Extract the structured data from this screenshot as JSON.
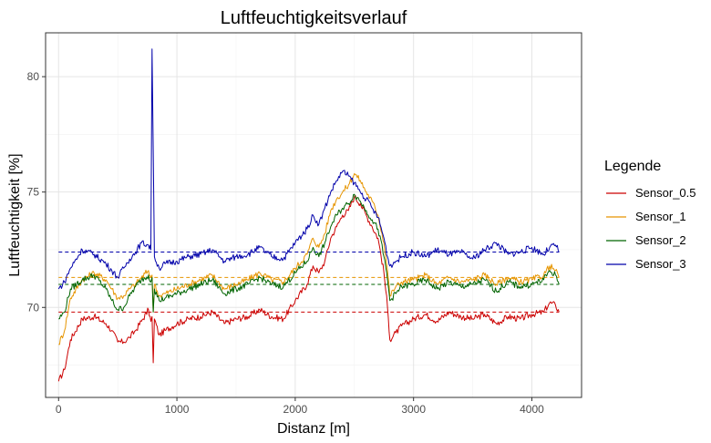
{
  "chart_data": {
    "type": "line",
    "title": "Luftfeuchtigkeitsverlauf",
    "xlabel": "Distanz [m]",
    "ylabel": "Luftfeuchtigkeit [%]",
    "xlim": [
      -110,
      4420
    ],
    "ylim": [
      66.1,
      81.9
    ],
    "x_ticks": [
      0,
      1000,
      2000,
      3000,
      4000
    ],
    "y_ticks": [
      70,
      75,
      80
    ],
    "grid": true,
    "legend": {
      "title": "Legende",
      "position": "right"
    },
    "colors": {
      "Sensor_0.5": "#cc0000",
      "Sensor_1": "#e69500",
      "Sensor_2": "#006400",
      "Sensor_3": "#0000aa"
    },
    "series": [
      {
        "name": "Sensor_0.5",
        "mean": 69.8,
        "x": [
          0,
          50,
          100,
          200,
          300,
          400,
          450,
          500,
          550,
          600,
          650,
          700,
          760,
          780,
          790,
          800,
          810,
          850,
          900,
          1000,
          1100,
          1200,
          1300,
          1400,
          1500,
          1600,
          1700,
          1800,
          1900,
          2000,
          2100,
          2150,
          2200,
          2250,
          2300,
          2350,
          2400,
          2450,
          2500,
          2550,
          2600,
          2650,
          2700,
          2750,
          2780,
          2800,
          2850,
          2900,
          3000,
          3100,
          3200,
          3300,
          3400,
          3500,
          3600,
          3700,
          3800,
          3900,
          4000,
          4100,
          4150,
          4200,
          4230
        ],
        "values": [
          66.8,
          67.3,
          68.6,
          69.5,
          69.6,
          69.3,
          69.0,
          68.5,
          68.5,
          68.7,
          69.0,
          69.4,
          69.9,
          69.4,
          69.6,
          67.6,
          69.5,
          68.8,
          69.0,
          69.3,
          69.5,
          69.6,
          69.8,
          69.3,
          69.5,
          69.6,
          69.9,
          69.6,
          69.5,
          70.3,
          71.0,
          71.8,
          71.5,
          72.0,
          73.0,
          73.5,
          74.0,
          74.2,
          74.8,
          74.5,
          74.0,
          73.5,
          73.0,
          71.5,
          70.0,
          68.6,
          68.9,
          69.2,
          69.5,
          69.7,
          69.4,
          69.8,
          69.6,
          69.5,
          69.7,
          69.3,
          69.6,
          69.5,
          69.7,
          69.8,
          70.2,
          70.1,
          69.8
        ]
      },
      {
        "name": "Sensor_1",
        "mean": 71.3,
        "x": [
          0,
          50,
          100,
          200,
          300,
          400,
          450,
          500,
          550,
          600,
          650,
          700,
          760,
          780,
          790,
          800,
          810,
          850,
          900,
          1000,
          1100,
          1200,
          1300,
          1400,
          1500,
          1600,
          1700,
          1800,
          1900,
          2000,
          2100,
          2150,
          2200,
          2250,
          2300,
          2350,
          2400,
          2450,
          2500,
          2550,
          2600,
          2650,
          2700,
          2750,
          2780,
          2800,
          2850,
          2900,
          3000,
          3100,
          3200,
          3300,
          3400,
          3500,
          3600,
          3700,
          3800,
          3900,
          4000,
          4100,
          4150,
          4200,
          4230
        ],
        "values": [
          68.4,
          69.0,
          70.4,
          71.2,
          71.5,
          71.2,
          70.8,
          70.4,
          70.5,
          70.8,
          71.0,
          71.3,
          71.6,
          71.3,
          71.4,
          69.8,
          71.0,
          70.5,
          70.6,
          70.8,
          71.0,
          71.2,
          71.4,
          70.8,
          71.0,
          71.2,
          71.5,
          71.2,
          71.1,
          71.7,
          72.3,
          73.0,
          72.6,
          73.2,
          74.2,
          74.7,
          75.0,
          75.3,
          75.8,
          75.5,
          75.0,
          74.6,
          74.0,
          72.8,
          71.6,
          70.5,
          70.9,
          71.1,
          71.2,
          71.4,
          71.0,
          71.3,
          71.1,
          71.2,
          71.4,
          71.0,
          71.3,
          71.1,
          71.2,
          71.4,
          71.8,
          71.6,
          71.3
        ]
      },
      {
        "name": "Sensor_2",
        "mean": 71.0,
        "x": [
          0,
          50,
          100,
          200,
          300,
          400,
          450,
          500,
          550,
          600,
          650,
          700,
          760,
          780,
          790,
          800,
          810,
          850,
          900,
          1000,
          1100,
          1200,
          1300,
          1400,
          1500,
          1600,
          1700,
          1800,
          1900,
          2000,
          2100,
          2150,
          2200,
          2250,
          2300,
          2350,
          2400,
          2450,
          2500,
          2550,
          2600,
          2650,
          2700,
          2750,
          2780,
          2800,
          2850,
          2900,
          3000,
          3100,
          3200,
          3300,
          3400,
          3500,
          3600,
          3700,
          3800,
          3900,
          4000,
          4100,
          4150,
          4200,
          4230
        ],
        "values": [
          69.5,
          69.8,
          70.8,
          71.2,
          71.4,
          70.8,
          70.3,
          69.9,
          70.0,
          70.5,
          70.9,
          71.2,
          71.4,
          71.1,
          71.3,
          69.8,
          70.8,
          70.3,
          70.4,
          70.6,
          70.8,
          71.0,
          71.2,
          70.6,
          70.8,
          71.0,
          71.3,
          71.0,
          70.9,
          71.5,
          72.0,
          72.6,
          72.2,
          72.8,
          73.5,
          74.0,
          74.3,
          74.5,
          74.9,
          74.6,
          74.2,
          73.8,
          73.4,
          72.2,
          71.2,
          70.3,
          70.6,
          70.9,
          71.0,
          71.2,
          70.8,
          71.1,
          70.9,
          71.0,
          71.2,
          70.7,
          71.1,
          70.9,
          71.0,
          71.2,
          71.6,
          71.4,
          71.0
        ]
      },
      {
        "name": "Sensor_3",
        "mean": 72.4,
        "x": [
          0,
          50,
          100,
          200,
          300,
          400,
          450,
          500,
          550,
          600,
          650,
          700,
          760,
          780,
          790,
          800,
          810,
          850,
          900,
          1000,
          1100,
          1200,
          1300,
          1400,
          1500,
          1600,
          1700,
          1800,
          1900,
          2000,
          2100,
          2150,
          2200,
          2250,
          2300,
          2350,
          2400,
          2450,
          2500,
          2550,
          2600,
          2650,
          2700,
          2750,
          2780,
          2800,
          2850,
          2900,
          3000,
          3100,
          3200,
          3300,
          3400,
          3500,
          3600,
          3700,
          3800,
          3900,
          4000,
          4100,
          4150,
          4200,
          4230
        ],
        "values": [
          70.8,
          71.1,
          71.7,
          72.5,
          72.3,
          71.9,
          71.6,
          71.3,
          71.7,
          72.1,
          72.4,
          72.8,
          72.7,
          72.5,
          81.2,
          76.8,
          72.2,
          71.7,
          71.9,
          72.0,
          72.2,
          72.3,
          72.5,
          72.0,
          72.2,
          72.3,
          72.6,
          72.2,
          72.1,
          72.8,
          73.4,
          74.0,
          73.6,
          74.3,
          75.0,
          75.5,
          75.9,
          75.7,
          75.4,
          75.0,
          74.7,
          74.3,
          73.9,
          73.0,
          72.2,
          71.8,
          72.0,
          72.2,
          72.4,
          72.2,
          72.5,
          72.3,
          72.4,
          72.1,
          72.5,
          72.8,
          72.3,
          72.4,
          72.6,
          72.3,
          72.6,
          72.7,
          72.4
        ]
      }
    ]
  }
}
